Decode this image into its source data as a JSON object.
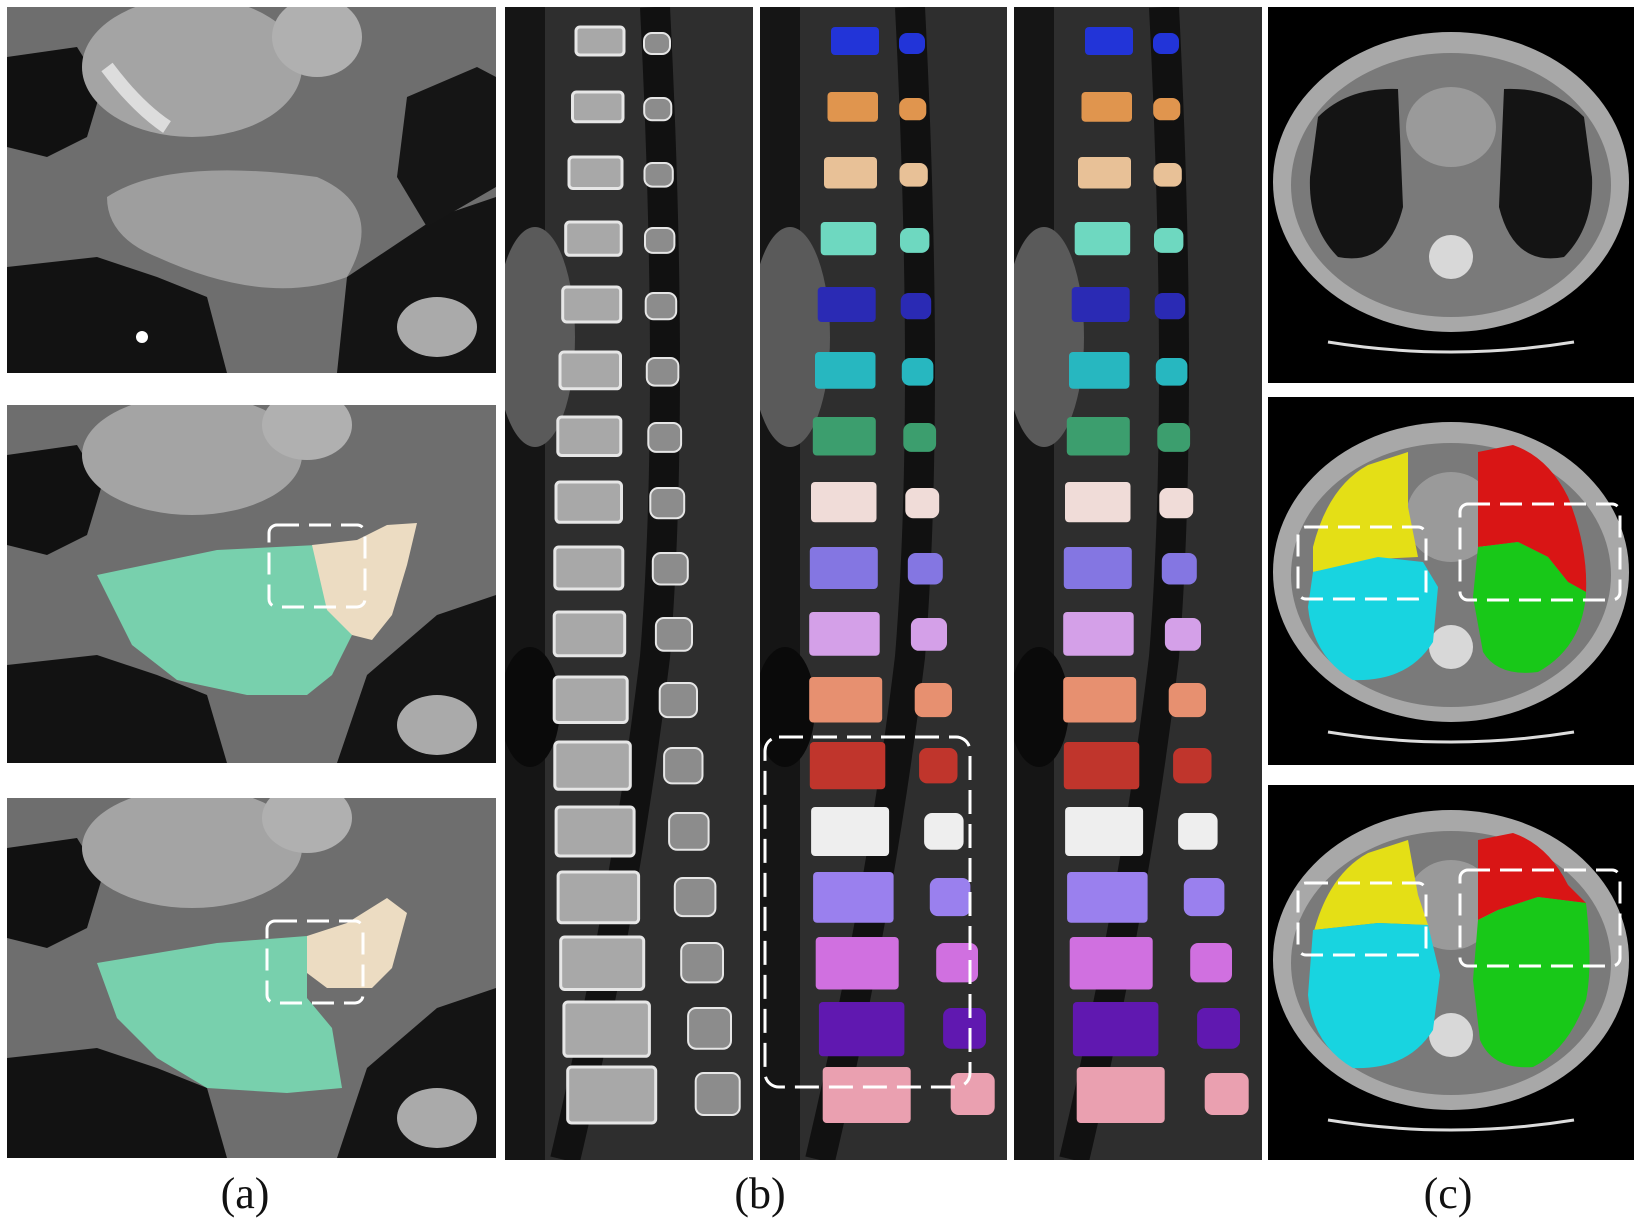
{
  "captions": {
    "a": "(a)",
    "b": "(b)",
    "c": "(c)"
  },
  "colors": {
    "mint": "#78d0ad",
    "beige": "#ecdcc2",
    "yellow": "#e4df16",
    "cyan": "#18d4e0",
    "red": "#d91515",
    "green": "#18c818"
  },
  "vertebra_colors": [
    "#2234d8",
    "#e0954e",
    "#e8c197",
    "#6ed8c0",
    "#2a2ab4",
    "#27b7c0",
    "#3c9e6e",
    "#f0dcd8",
    "#8476e2",
    "#d4a0e8",
    "#e79070",
    "#c0352c",
    "#eeeeee",
    "#9a80ee",
    "#d070e0",
    "#6018b0",
    "#eaa0b0"
  ]
}
